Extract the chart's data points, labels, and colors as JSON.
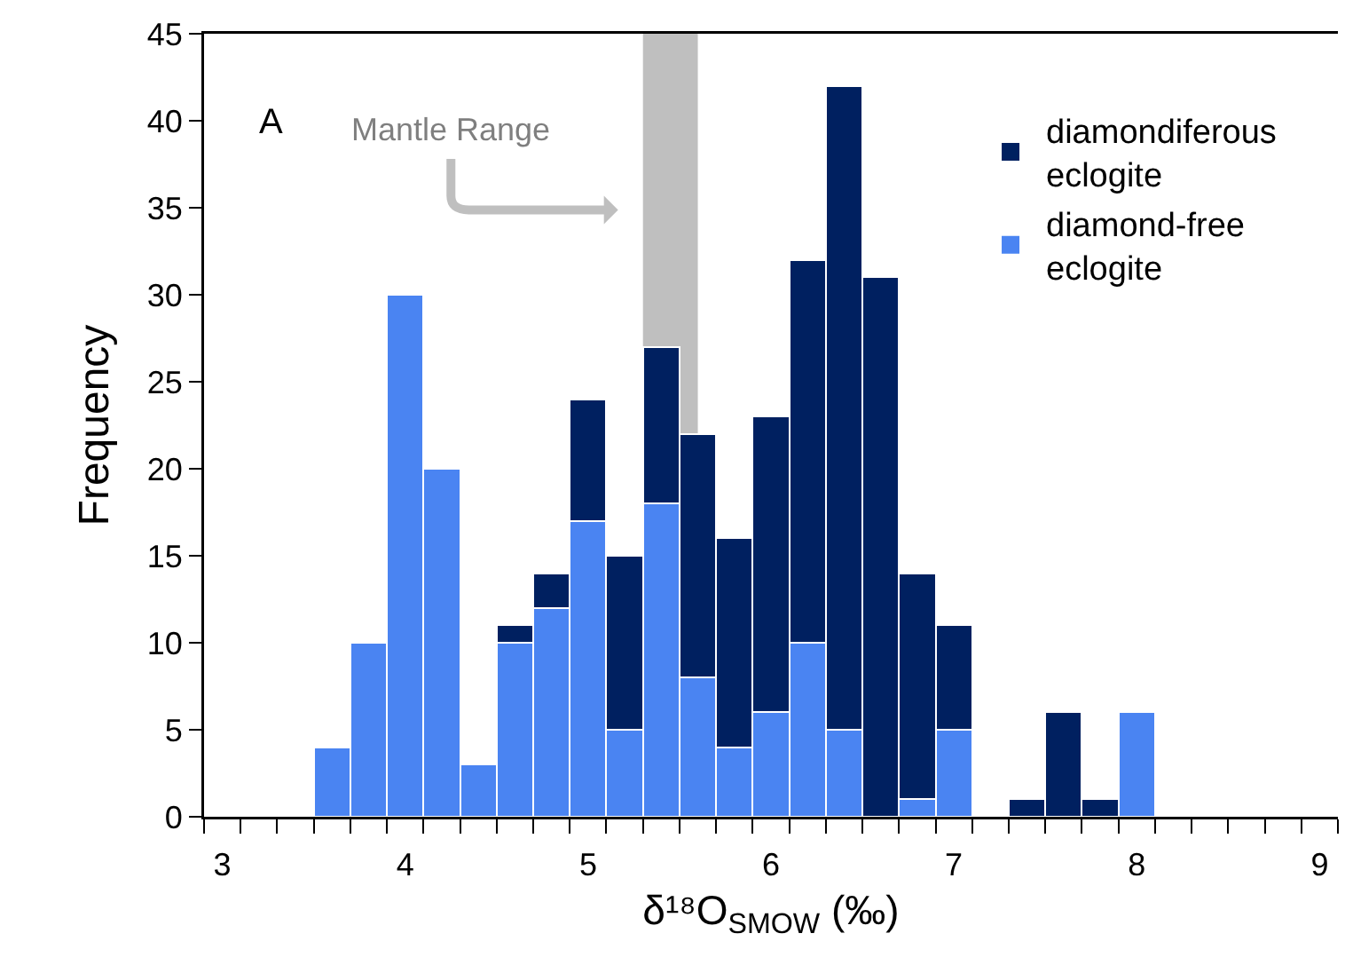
{
  "chart_data": {
    "type": "bar",
    "xlabel": "δ¹⁸O$_{SMOW}$ (‰)",
    "ylabel": "Frequency",
    "annotations": [
      "A"
    ],
    "x": [
      3.0,
      3.2,
      3.4,
      3.6,
      3.8,
      4.0,
      4.2,
      4.4,
      4.6,
      4.8,
      5.0,
      5.2,
      5.4,
      5.6,
      5.8,
      6.0,
      6.2,
      6.4,
      6.6,
      6.8,
      7.0,
      7.2,
      7.4,
      7.6,
      7.8,
      8.0,
      8.2,
      8.4,
      8.6,
      8.8,
      9.0
    ],
    "series": [
      {
        "name": "diamond-free eclogite",
        "color": "#4a84f2",
        "values": [
          0,
          0,
          0,
          4,
          10,
          30,
          20,
          3,
          10,
          12,
          17,
          5,
          18,
          8,
          4,
          6,
          10,
          5,
          0,
          1,
          5,
          0,
          0,
          0,
          0,
          6,
          0,
          0,
          0,
          0,
          0
        ]
      },
      {
        "name": "diamondiferous eclogite",
        "color": "#002060",
        "values": [
          0,
          0,
          0,
          0,
          0,
          0,
          0,
          0,
          1,
          2,
          7,
          10,
          9,
          14,
          12,
          17,
          22,
          37,
          31,
          13,
          6,
          0,
          1,
          6,
          1,
          0,
          0,
          0,
          0,
          0,
          0
        ]
      }
    ],
    "stacked": true,
    "xlim": [
      2.9,
      9.1
    ],
    "xticks": [
      3,
      4,
      5,
      6,
      7,
      8,
      9
    ],
    "ylim": [
      0,
      45
    ],
    "yticks": [
      0,
      5,
      10,
      15,
      20,
      25,
      30,
      35,
      40,
      45
    ],
    "bands": [
      {
        "axis": "x",
        "from": 5.3,
        "to": 5.6,
        "label": "Mantle Range",
        "color": "#bfbfbf"
      }
    ],
    "grid": false,
    "legend": "top right"
  }
}
